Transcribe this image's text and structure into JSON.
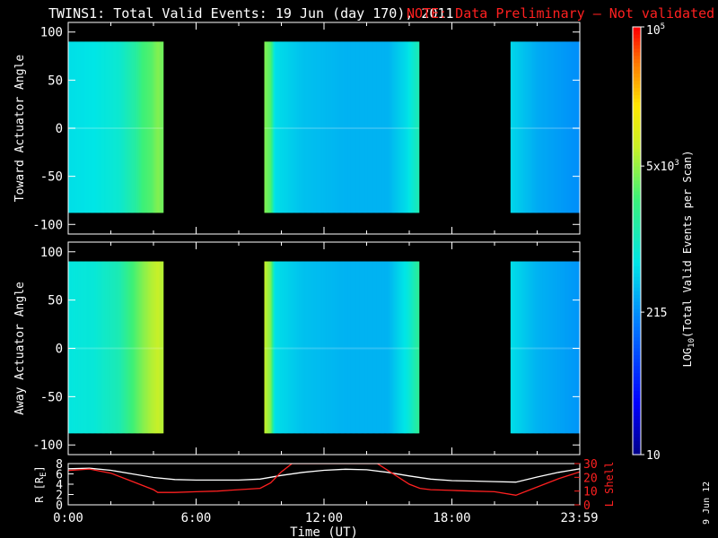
{
  "header": {
    "title": "TWINS1: Total Valid Events: 19 Jun (day 170), 2011",
    "note": "NOTE: Data Preliminary – Not validated",
    "note_color": "#ff2020"
  },
  "side_label": "9 Jun 12",
  "colors": {
    "frame": "#ffffff",
    "background": "#000000",
    "lshell": "#ff2020",
    "radius": "#ffffff"
  },
  "colorbar": {
    "label": "LOG10(Total Valid Events per Scan)",
    "label_main": "LOG",
    "label_sub": "10",
    "label_rest": "(Total Valid Events per Scan)",
    "scale": "log",
    "range": [
      10,
      100000
    ],
    "ticks": [
      {
        "value": 100000,
        "base": "10",
        "sup": "5"
      },
      {
        "value": 5000,
        "base": "5x10",
        "sup": "3"
      },
      {
        "value": 215,
        "base": "215",
        "sup": ""
      },
      {
        "value": 10,
        "base": "10",
        "sup": ""
      }
    ]
  },
  "chart_data": [
    {
      "type": "heatmap",
      "name": "toward",
      "ylabel": "Toward Actuator Angle",
      "ylim": [
        -110,
        110
      ],
      "yticks": [
        100,
        50,
        0,
        -50,
        -100
      ],
      "xlim": [
        0,
        24
      ],
      "y_range_data": [
        -88,
        90
      ],
      "segments": [
        {
          "start": 0.0,
          "end": 4.45,
          "profile": [
            {
              "t": 0.0,
              "v": 0.44
            },
            {
              "t": 1.2,
              "v": 0.45
            },
            {
              "t": 2.4,
              "v": 0.48
            },
            {
              "t": 3.2,
              "v": 0.55
            },
            {
              "t": 3.5,
              "v": 0.6
            },
            {
              "t": 3.9,
              "v": 0.62
            },
            {
              "t": 4.2,
              "v": 0.66
            },
            {
              "t": 4.45,
              "v": 0.64
            }
          ]
        },
        {
          "start": 9.2,
          "end": 16.45,
          "profile": [
            {
              "t": 9.2,
              "v": 0.66
            },
            {
              "t": 9.5,
              "v": 0.62
            },
            {
              "t": 9.7,
              "v": 0.44
            },
            {
              "t": 11.0,
              "v": 0.4
            },
            {
              "t": 13.0,
              "v": 0.38
            },
            {
              "t": 15.0,
              "v": 0.38
            },
            {
              "t": 15.9,
              "v": 0.44
            },
            {
              "t": 16.45,
              "v": 0.52
            }
          ]
        },
        {
          "start": 20.75,
          "end": 24.0,
          "profile": [
            {
              "t": 20.75,
              "v": 0.43
            },
            {
              "t": 22.0,
              "v": 0.37
            },
            {
              "t": 24.0,
              "v": 0.33
            }
          ]
        }
      ]
    },
    {
      "type": "heatmap",
      "name": "away",
      "ylabel": "Away Actuator Angle",
      "ylim": [
        -110,
        110
      ],
      "yticks": [
        100,
        50,
        0,
        -50,
        -100
      ],
      "xlim": [
        0,
        24
      ],
      "y_range_data": [
        -88,
        90
      ],
      "segments": [
        {
          "start": 0.0,
          "end": 4.45,
          "profile": [
            {
              "t": 0.0,
              "v": 0.46
            },
            {
              "t": 1.2,
              "v": 0.47
            },
            {
              "t": 2.4,
              "v": 0.52
            },
            {
              "t": 3.0,
              "v": 0.6
            },
            {
              "t": 3.5,
              "v": 0.66
            },
            {
              "t": 3.9,
              "v": 0.7
            },
            {
              "t": 4.2,
              "v": 0.72
            },
            {
              "t": 4.45,
              "v": 0.7
            }
          ]
        },
        {
          "start": 9.2,
          "end": 16.45,
          "profile": [
            {
              "t": 9.2,
              "v": 0.72
            },
            {
              "t": 9.5,
              "v": 0.66
            },
            {
              "t": 9.7,
              "v": 0.44
            },
            {
              "t": 11.0,
              "v": 0.4
            },
            {
              "t": 13.0,
              "v": 0.38
            },
            {
              "t": 15.0,
              "v": 0.38
            },
            {
              "t": 15.9,
              "v": 0.46
            },
            {
              "t": 16.45,
              "v": 0.56
            }
          ]
        },
        {
          "start": 20.75,
          "end": 24.0,
          "profile": [
            {
              "t": 20.75,
              "v": 0.44
            },
            {
              "t": 22.0,
              "v": 0.38
            },
            {
              "t": 24.0,
              "v": 0.34
            }
          ]
        }
      ]
    },
    {
      "type": "line",
      "name": "orbit",
      "xlabel": "Time (UT)",
      "xlim": [
        0,
        24
      ],
      "xticks": [
        {
          "value": 0,
          "label": "0:00"
        },
        {
          "value": 6,
          "label": "6:00"
        },
        {
          "value": 12,
          "label": "12:00"
        },
        {
          "value": 18,
          "label": "18:00"
        },
        {
          "value": 23.98,
          "label": "23:59"
        }
      ],
      "left_axis": {
        "label": "R [RE]",
        "label_main": "R [R",
        "label_sub": "E",
        "label_end": "]",
        "ylim": [
          0,
          8
        ],
        "ticks": [
          0,
          2,
          4,
          6,
          8
        ]
      },
      "right_axis": {
        "label": "L Shell",
        "ylim": [
          0,
          30
        ],
        "ticks": [
          0,
          10,
          20,
          30
        ]
      },
      "series": [
        {
          "axis": "left",
          "x": [
            0,
            1,
            2,
            3,
            4,
            5,
            6,
            7,
            8,
            9,
            10,
            11,
            12,
            13,
            14,
            15,
            16,
            17,
            18,
            19,
            20,
            21,
            22,
            23,
            24
          ],
          "y": [
            7.0,
            7.1,
            6.7,
            6.0,
            5.3,
            4.9,
            4.8,
            4.8,
            4.8,
            5.0,
            5.7,
            6.3,
            6.7,
            6.9,
            6.8,
            6.3,
            5.6,
            5.0,
            4.7,
            4.6,
            4.5,
            4.4,
            5.4,
            6.3,
            7.0
          ]
        },
        {
          "axis": "right",
          "x": [
            0,
            1,
            2,
            3,
            4,
            4.2,
            5,
            6,
            7,
            8,
            9,
            9.5,
            10,
            10.5,
            10.9,
            14.5,
            15,
            16,
            16.5,
            17,
            18,
            19,
            20,
            21,
            22,
            23,
            24
          ],
          "y": [
            25,
            26,
            23,
            17,
            11,
            9,
            9,
            9.5,
            10,
            11,
            12,
            16,
            24,
            30,
            30,
            30,
            25,
            15,
            12,
            11,
            10.5,
            10,
            9.5,
            7,
            13,
            19,
            24
          ]
        }
      ]
    }
  ]
}
